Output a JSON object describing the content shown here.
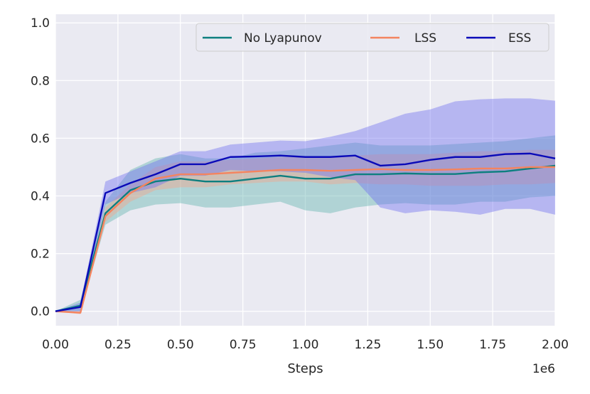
{
  "chart_data": {
    "type": "line",
    "title": "",
    "xlabel": "Steps",
    "ylabel": "",
    "x_offset_label": "1e6",
    "xlim": [
      0,
      2.0
    ],
    "ylim": [
      -0.05,
      1.03
    ],
    "grid": true,
    "legend_position": "top-right",
    "x": [
      0.0,
      0.1,
      0.2,
      0.3,
      0.4,
      0.5,
      0.6,
      0.7,
      0.8,
      0.9,
      1.0,
      1.1,
      1.2,
      1.3,
      1.4,
      1.5,
      1.6,
      1.7,
      1.8,
      1.9,
      2.0
    ],
    "x_ticks": [
      {
        "value": 0.0,
        "label": "0.00"
      },
      {
        "value": 0.25,
        "label": "0.25"
      },
      {
        "value": 0.5,
        "label": "0.50"
      },
      {
        "value": 0.75,
        "label": "0.75"
      },
      {
        "value": 1.0,
        "label": "1.00"
      },
      {
        "value": 1.25,
        "label": "1.25"
      },
      {
        "value": 1.5,
        "label": "1.50"
      },
      {
        "value": 1.75,
        "label": "1.75"
      },
      {
        "value": 2.0,
        "label": "2.00"
      }
    ],
    "y_ticks": [
      {
        "value": 0.0,
        "label": "0.0"
      },
      {
        "value": 0.2,
        "label": "0.2"
      },
      {
        "value": 0.4,
        "label": "0.4"
      },
      {
        "value": 0.6,
        "label": "0.6"
      },
      {
        "value": 0.8,
        "label": "0.8"
      },
      {
        "value": 1.0,
        "label": "1.0"
      }
    ],
    "series": [
      {
        "name": "No Lyapunov",
        "key": "no-lyapunov",
        "color": "#0d7f7f",
        "band_color": "#5fb3ad",
        "mean": [
          0.0,
          0.02,
          0.34,
          0.42,
          0.45,
          0.46,
          0.45,
          0.45,
          0.46,
          0.47,
          0.46,
          0.46,
          0.475,
          0.475,
          0.478,
          0.476,
          0.476,
          0.482,
          0.485,
          0.495,
          0.505
        ],
        "lower": [
          0.0,
          0.0,
          0.3,
          0.35,
          0.37,
          0.375,
          0.36,
          0.36,
          0.37,
          0.38,
          0.35,
          0.34,
          0.36,
          0.37,
          0.375,
          0.37,
          0.37,
          0.38,
          0.38,
          0.395,
          0.4
        ],
        "upper": [
          0.0,
          0.04,
          0.38,
          0.49,
          0.53,
          0.545,
          0.53,
          0.53,
          0.55,
          0.555,
          0.565,
          0.575,
          0.585,
          0.575,
          0.575,
          0.575,
          0.58,
          0.585,
          0.59,
          0.6,
          0.61
        ]
      },
      {
        "name": "LSS",
        "key": "lss",
        "color": "#f4845f",
        "band_color": "#f5a58a",
        "mean": [
          0.0,
          -0.005,
          0.33,
          0.41,
          0.46,
          0.475,
          0.475,
          0.48,
          0.485,
          0.49,
          0.49,
          0.487,
          0.49,
          0.493,
          0.49,
          0.49,
          0.492,
          0.495,
          0.495,
          0.5,
          0.5
        ],
        "lower": [
          0.0,
          -0.01,
          0.31,
          0.38,
          0.42,
          0.43,
          0.43,
          0.44,
          0.445,
          0.45,
          0.45,
          0.44,
          0.445,
          0.44,
          0.44,
          0.435,
          0.435,
          0.435,
          0.44,
          0.44,
          0.445
        ],
        "upper": [
          0.0,
          0.0,
          0.36,
          0.44,
          0.5,
          0.52,
          0.52,
          0.525,
          0.53,
          0.535,
          0.535,
          0.535,
          0.54,
          0.545,
          0.545,
          0.545,
          0.55,
          0.555,
          0.555,
          0.56,
          0.56
        ]
      },
      {
        "name": "ESS",
        "key": "ess",
        "color": "#0a0ab8",
        "band_color": "#6e6ef0",
        "mean": [
          0.0,
          0.015,
          0.41,
          0.445,
          0.475,
          0.51,
          0.51,
          0.535,
          0.537,
          0.54,
          0.535,
          0.535,
          0.54,
          0.505,
          0.51,
          0.525,
          0.535,
          0.535,
          0.545,
          0.547,
          0.53
        ],
        "lower": [
          0.0,
          0.0,
          0.37,
          0.41,
          0.43,
          0.47,
          0.47,
          0.49,
          0.485,
          0.485,
          0.48,
          0.465,
          0.455,
          0.36,
          0.34,
          0.35,
          0.345,
          0.335,
          0.355,
          0.355,
          0.335
        ],
        "upper": [
          0.0,
          0.03,
          0.45,
          0.485,
          0.52,
          0.555,
          0.555,
          0.578,
          0.585,
          0.592,
          0.59,
          0.605,
          0.625,
          0.655,
          0.685,
          0.7,
          0.728,
          0.735,
          0.738,
          0.738,
          0.73
        ]
      }
    ]
  }
}
